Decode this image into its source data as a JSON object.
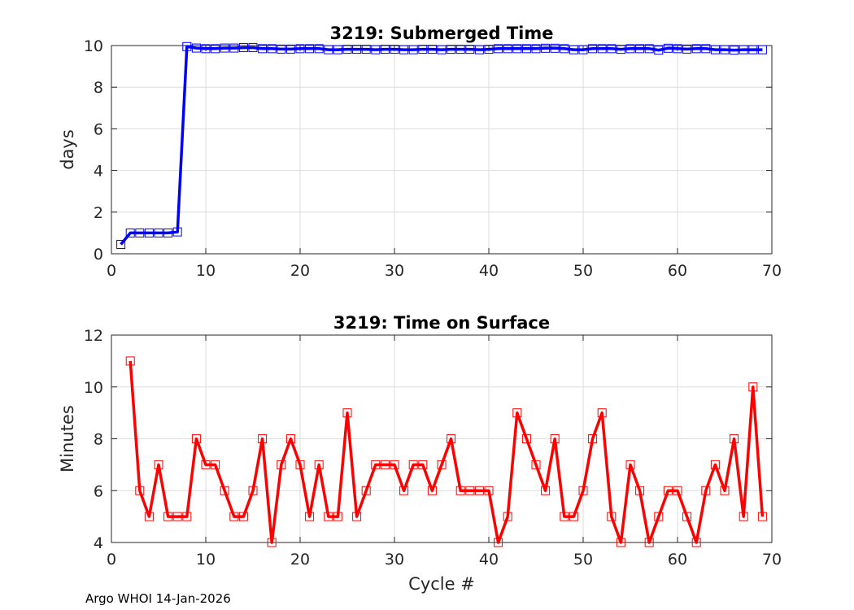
{
  "chart_data": [
    {
      "type": "line",
      "title": "3219: Submerged Time",
      "xlabel": "",
      "ylabel": "days",
      "xlim": [
        0,
        70
      ],
      "ylim": [
        0,
        10
      ],
      "xticks": [
        0,
        10,
        20,
        30,
        40,
        50,
        60,
        70
      ],
      "yticks": [
        0,
        2,
        4,
        6,
        8,
        10
      ],
      "grid": true,
      "color": "#0000ff",
      "marker": "square",
      "series": [
        {
          "name": "Submerged Time",
          "x": [
            1,
            2,
            3,
            4,
            5,
            6,
            7,
            8,
            9,
            10,
            11,
            12,
            13,
            14,
            15,
            16,
            17,
            18,
            19,
            20,
            21,
            22,
            23,
            24,
            25,
            26,
            27,
            28,
            29,
            30,
            31,
            32,
            33,
            34,
            35,
            36,
            37,
            38,
            39,
            40,
            41,
            42,
            43,
            44,
            45,
            46,
            47,
            48,
            49,
            50,
            51,
            52,
            53,
            54,
            55,
            56,
            57,
            58,
            59,
            60,
            61,
            62,
            63,
            64,
            65,
            66,
            67,
            68,
            69
          ],
          "values": [
            0.45,
            1.0,
            1.0,
            1.0,
            1.0,
            1.0,
            1.05,
            9.95,
            9.88,
            9.85,
            9.85,
            9.88,
            9.88,
            9.9,
            9.9,
            9.85,
            9.85,
            9.83,
            9.83,
            9.85,
            9.85,
            9.85,
            9.8,
            9.8,
            9.82,
            9.82,
            9.82,
            9.8,
            9.82,
            9.82,
            9.8,
            9.8,
            9.82,
            9.82,
            9.8,
            9.82,
            9.82,
            9.82,
            9.8,
            9.82,
            9.85,
            9.85,
            9.85,
            9.85,
            9.85,
            9.87,
            9.87,
            9.85,
            9.8,
            9.8,
            9.85,
            9.85,
            9.85,
            9.82,
            9.85,
            9.85,
            9.85,
            9.78,
            9.87,
            9.85,
            9.83,
            9.85,
            9.85,
            9.8,
            9.8,
            9.78,
            9.8,
            9.8,
            9.8
          ]
        }
      ]
    },
    {
      "type": "line",
      "title": "3219: Time on Surface",
      "xlabel": "Cycle #",
      "ylabel": "Minutes",
      "xlim": [
        0,
        70
      ],
      "ylim": [
        4,
        12
      ],
      "xticks": [
        0,
        10,
        20,
        30,
        40,
        50,
        60,
        70
      ],
      "yticks": [
        4,
        6,
        8,
        10,
        12
      ],
      "grid": true,
      "color": "#ff0000",
      "marker": "square",
      "series": [
        {
          "name": "Time on Surface",
          "x": [
            2,
            3,
            4,
            5,
            6,
            7,
            8,
            9,
            10,
            11,
            12,
            13,
            14,
            15,
            16,
            17,
            18,
            19,
            20,
            21,
            22,
            23,
            24,
            25,
            26,
            27,
            28,
            29,
            30,
            31,
            32,
            33,
            34,
            35,
            36,
            37,
            38,
            39,
            40,
            41,
            42,
            43,
            44,
            45,
            46,
            47,
            48,
            49,
            50,
            51,
            52,
            53,
            54,
            55,
            56,
            57,
            58,
            59,
            60,
            61,
            62,
            63,
            64,
            65,
            66,
            67,
            68,
            69
          ],
          "values": [
            11,
            6,
            5,
            7,
            5,
            5,
            5,
            8,
            7,
            7,
            6,
            5,
            5,
            6,
            8,
            4,
            7,
            8,
            7,
            5,
            7,
            5,
            5,
            9,
            5,
            6,
            7,
            7,
            7,
            6,
            7,
            7,
            6,
            7,
            8,
            6,
            6,
            6,
            6,
            4,
            5,
            9,
            8,
            7,
            6,
            8,
            5,
            5,
            6,
            8,
            9,
            5,
            4,
            7,
            6,
            4,
            5,
            6,
            6,
            5,
            4,
            6,
            7,
            6,
            8,
            5,
            10,
            5
          ]
        }
      ]
    }
  ],
  "footer": "Argo WHOI 14-Jan-2026"
}
